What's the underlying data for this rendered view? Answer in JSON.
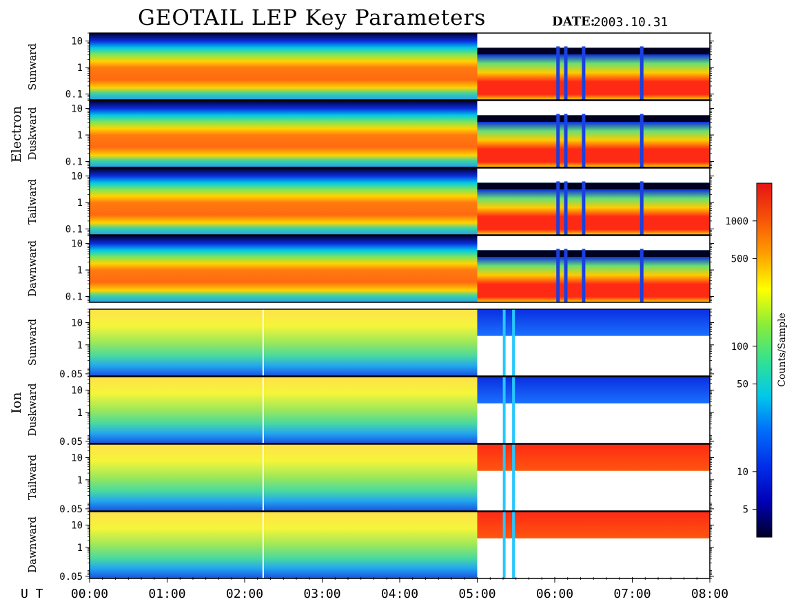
{
  "title": "GEOTAIL LEP Key Parameters",
  "date_label": "DATE:",
  "date_value": "2003.10.31",
  "groups": [
    {
      "label": "Electron"
    },
    {
      "label": "Ion"
    }
  ],
  "time_axis": {
    "prefix": "U T",
    "ticks": [
      "00:00",
      "01:00",
      "02:00",
      "03:00",
      "04:00",
      "05:00",
      "06:00",
      "07:00",
      "08:00"
    ]
  },
  "colorbar": {
    "label": "Counts/Sample",
    "ticks": [
      "1000",
      "500",
      "100",
      "50",
      "10",
      "5"
    ],
    "tick_values": [
      1000,
      500,
      100,
      50,
      10,
      5
    ],
    "range": [
      3,
      2000
    ],
    "scale": "log"
  },
  "chart_data": {
    "type": "heatmap",
    "x_unit": "UT (hours)",
    "x_range": [
      0,
      8
    ],
    "panels": [
      {
        "group": "Electron",
        "direction": "Sunward",
        "y_scale": "log",
        "y_range": [
          0.06,
          20
        ],
        "y_ticks": [
          "10",
          "1",
          "0.1"
        ],
        "y_tick_values": [
          10,
          1,
          0.1
        ]
      },
      {
        "group": "Electron",
        "direction": "Duskward",
        "y_scale": "log",
        "y_range": [
          0.06,
          20
        ],
        "y_ticks": [
          "10",
          "1",
          "0.1"
        ],
        "y_tick_values": [
          10,
          1,
          0.1
        ]
      },
      {
        "group": "Electron",
        "direction": "Tailward",
        "y_scale": "log",
        "y_range": [
          0.06,
          20
        ],
        "y_ticks": [
          "10",
          "1",
          "0.1"
        ],
        "y_tick_values": [
          10,
          1,
          0.1
        ]
      },
      {
        "group": "Electron",
        "direction": "Dawnward",
        "y_scale": "log",
        "y_range": [
          0.06,
          20
        ],
        "y_ticks": [
          "10",
          "1",
          "0.1"
        ],
        "y_tick_values": [
          10,
          1,
          0.1
        ]
      },
      {
        "group": "Ion",
        "direction": "Sunward",
        "y_scale": "log",
        "y_range": [
          0.04,
          40
        ],
        "y_ticks": [
          "10",
          "1",
          "0.05"
        ],
        "y_tick_values": [
          10,
          1,
          0.05
        ]
      },
      {
        "group": "Ion",
        "direction": "Duskward",
        "y_scale": "log",
        "y_range": [
          0.04,
          40
        ],
        "y_ticks": [
          "10",
          "1",
          "0.05"
        ],
        "y_tick_values": [
          10,
          1,
          0.05
        ]
      },
      {
        "group": "Ion",
        "direction": "Tailward",
        "y_scale": "log",
        "y_range": [
          0.04,
          40
        ],
        "y_ticks": [
          "10",
          "1",
          "0.05"
        ],
        "y_tick_values": [
          10,
          1,
          0.05
        ]
      },
      {
        "group": "Ion",
        "direction": "Dawnward",
        "y_scale": "log",
        "y_range": [
          0.04,
          40
        ],
        "y_ticks": [
          "10",
          "1",
          "0.05"
        ],
        "y_tick_values": [
          10,
          1,
          0.05
        ]
      }
    ]
  }
}
